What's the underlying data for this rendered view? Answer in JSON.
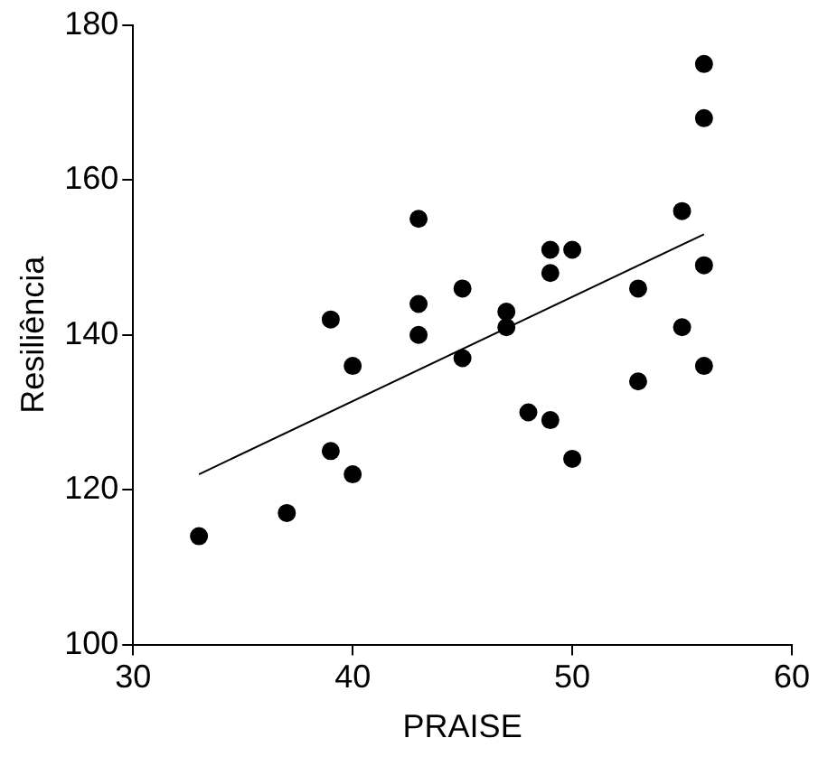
{
  "chart_data": {
    "type": "scatter",
    "xlabel": "PRAISE",
    "ylabel": "Resiliência",
    "xlim": [
      30,
      60
    ],
    "ylim": [
      100,
      180
    ],
    "xticks": [
      30,
      40,
      50,
      60
    ],
    "yticks": [
      100,
      120,
      140,
      160,
      180
    ],
    "grid": false,
    "legend": false,
    "marker": "circle",
    "series": [
      {
        "type": "scatter",
        "color": "#000000",
        "x": [
          33,
          37,
          39,
          39,
          40,
          40,
          43,
          43,
          43,
          45,
          45,
          47,
          47,
          48,
          49,
          49,
          49,
          50,
          50,
          53,
          53,
          55,
          55,
          56,
          56,
          56,
          56
        ],
        "values": [
          114,
          117,
          142,
          125,
          136,
          122,
          155,
          144,
          140,
          146,
          137,
          143,
          141,
          130,
          151,
          148,
          129,
          151,
          124,
          146,
          134,
          156,
          141,
          175,
          168,
          149,
          136
        ]
      },
      {
        "type": "line",
        "color": "#000000",
        "marker": "none",
        "line_style": "solid",
        "x": [
          33,
          56
        ],
        "values": [
          122,
          153
        ]
      }
    ]
  }
}
